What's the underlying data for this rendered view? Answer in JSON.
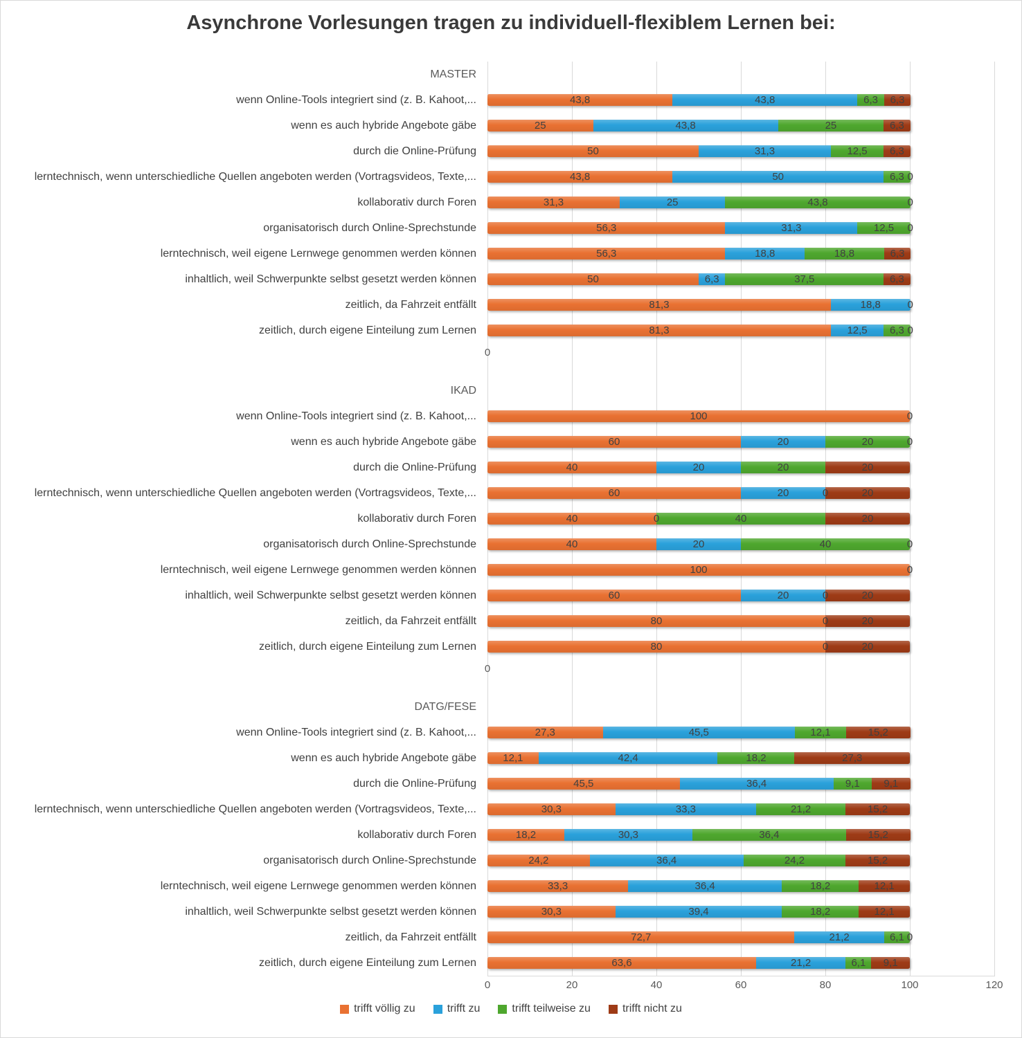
{
  "title": "Asynchrone Vorlesungen tragen zu individuell-flexiblem Lernen bei:",
  "chart_data": {
    "type": "bar",
    "orientation": "horizontal",
    "stacked": true,
    "unit": "percent",
    "title": "Asynchrone Vorlesungen tragen zu individuell-flexiblem Lernen bei:",
    "x_axis": {
      "ticks": [
        "0",
        "20",
        "40",
        "60",
        "80",
        "100",
        "120"
      ],
      "min": 0,
      "max": 120,
      "grid": true
    },
    "series_names": [
      "trifft völlig zu",
      "trifft zu",
      "trifft teilweise zu",
      "trifft nicht zu"
    ],
    "series_colors": [
      "#E97132",
      "#2AA1DB",
      "#4EA72E",
      "#9E3B16"
    ],
    "legend": {
      "position": "bottom",
      "items": [
        {
          "label": "trifft völlig zu",
          "color": "#E97132"
        },
        {
          "label": "trifft zu",
          "color": "#2AA1DB"
        },
        {
          "label": "trifft teilweise zu",
          "color": "#4EA72E"
        },
        {
          "label": "trifft nicht zu",
          "color": "#9E3B16"
        }
      ]
    },
    "categories": [
      "wenn Online-Tools integriert sind (z. B. Kahoot,...",
      "wenn es auch hybride Angebote gäbe",
      "durch die Online-Prüfung",
      "lerntechnisch, wenn unterschiedliche Quellen angeboten werden (Vortragsvideos, Texte,...",
      "kollaborativ durch Foren",
      "organisatorisch durch Online-Sprechstunde",
      "lerntechnisch, weil eigene Lernwege genommen werden können",
      "inhaltlich, weil Schwerpunkte selbst gesetzt werden können",
      "zeitlich, da Fahrzeit entfällt",
      "zeitlich, durch eigene Einteilung zum Lernen"
    ],
    "groups": [
      {
        "name": "MASTER",
        "axis_labels": [
          "0"
        ],
        "rows": [
          {
            "values": [
              43.8,
              43.8,
              6.3,
              6.3
            ],
            "labels": [
              "43,8",
              "43,8",
              "6,3",
              "6,3"
            ]
          },
          {
            "values": [
              25,
              43.8,
              25,
              6.3
            ],
            "labels": [
              "25",
              "43,8",
              "25",
              "6,3"
            ]
          },
          {
            "values": [
              50,
              31.3,
              12.5,
              6.3
            ],
            "labels": [
              "50",
              "31,3",
              "12,5",
              "6,3"
            ]
          },
          {
            "values": [
              43.8,
              50,
              6.3,
              0
            ],
            "labels": [
              "43,8",
              "50",
              "6,3",
              "0"
            ]
          },
          {
            "values": [
              31.3,
              25,
              43.8,
              0
            ],
            "labels": [
              "31,3",
              "25",
              "43,8",
              "0"
            ]
          },
          {
            "values": [
              56.3,
              31.3,
              12.5,
              0
            ],
            "labels": [
              "56,3",
              "31,3",
              "12,5",
              "0"
            ]
          },
          {
            "values": [
              56.3,
              18.8,
              18.8,
              6.3
            ],
            "labels": [
              "56,3",
              "18,8",
              "18,8",
              "6,3"
            ]
          },
          {
            "values": [
              50,
              6.3,
              37.5,
              6.3
            ],
            "labels": [
              "50",
              "6,3",
              "37,5",
              "6,3"
            ]
          },
          {
            "values": [
              81.3,
              18.8,
              0,
              0
            ],
            "labels": [
              "81,3",
              "18,8",
              "0",
              ""
            ]
          },
          {
            "values": [
              81.3,
              12.5,
              6.3,
              0
            ],
            "labels": [
              "81,3",
              "12,5",
              "6,3",
              "0"
            ]
          }
        ]
      },
      {
        "name": "IKAD",
        "axis_labels": [
          "0"
        ],
        "rows": [
          {
            "values": [
              100,
              0,
              0,
              0
            ],
            "labels": [
              "100",
              "0",
              "",
              ""
            ]
          },
          {
            "values": [
              60,
              20,
              20,
              0
            ],
            "labels": [
              "60",
              "20",
              "20",
              "0"
            ]
          },
          {
            "values": [
              40,
              20,
              20,
              20
            ],
            "labels": [
              "40",
              "20",
              "20",
              "20"
            ]
          },
          {
            "values": [
              60,
              20,
              0,
              20
            ],
            "labels": [
              "60",
              "20",
              "0",
              "20"
            ]
          },
          {
            "values": [
              40,
              0,
              40,
              20
            ],
            "labels": [
              "40",
              "0",
              "40",
              "20"
            ]
          },
          {
            "values": [
              40,
              20,
              40,
              0
            ],
            "labels": [
              "40",
              "20",
              "40",
              "0"
            ]
          },
          {
            "values": [
              100,
              0,
              0,
              0
            ],
            "labels": [
              "100",
              "0",
              "",
              ""
            ]
          },
          {
            "values": [
              60,
              20,
              0,
              20
            ],
            "labels": [
              "60",
              "20",
              "0",
              "20"
            ]
          },
          {
            "values": [
              80,
              0,
              0,
              20
            ],
            "labels": [
              "80",
              "0",
              "",
              "20"
            ]
          },
          {
            "values": [
              80,
              0,
              0,
              20
            ],
            "labels": [
              "80",
              "0",
              "",
              "20"
            ]
          }
        ]
      },
      {
        "name": "DATG/FESE",
        "axis_labels": [
          "0",
          "20",
          "40",
          "60",
          "80",
          "100",
          "120"
        ],
        "rows": [
          {
            "values": [
              27.3,
              45.5,
              12.1,
              15.2
            ],
            "labels": [
              "27,3",
              "45,5",
              "12,1",
              "15,2"
            ]
          },
          {
            "values": [
              12.1,
              42.4,
              18.2,
              27.3
            ],
            "labels": [
              "12,1",
              "42,4",
              "18,2",
              "27,3"
            ]
          },
          {
            "values": [
              45.5,
              36.4,
              9.1,
              9.1
            ],
            "labels": [
              "45,5",
              "36,4",
              "9,1",
              "9,1"
            ]
          },
          {
            "values": [
              30.3,
              33.3,
              21.2,
              15.2
            ],
            "labels": [
              "30,3",
              "33,3",
              "21,2",
              "15,2"
            ]
          },
          {
            "values": [
              18.2,
              30.3,
              36.4,
              15.2
            ],
            "labels": [
              "18,2",
              "30,3",
              "36,4",
              "15,2"
            ]
          },
          {
            "values": [
              24.2,
              36.4,
              24.2,
              15.2
            ],
            "labels": [
              "24,2",
              "36,4",
              "24,2",
              "15,2"
            ]
          },
          {
            "values": [
              33.3,
              36.4,
              18.2,
              12.1
            ],
            "labels": [
              "33,3",
              "36,4",
              "18,2",
              "12,1"
            ]
          },
          {
            "values": [
              30.3,
              39.4,
              18.2,
              12.1
            ],
            "labels": [
              "30,3",
              "39,4",
              "18,2",
              "12,1"
            ]
          },
          {
            "values": [
              72.7,
              21.2,
              6.1,
              0
            ],
            "labels": [
              "72,7",
              "21,2",
              "6,1",
              "0"
            ]
          },
          {
            "values": [
              63.6,
              21.2,
              6.1,
              9.1
            ],
            "labels": [
              "63,6",
              "21,2",
              "6,1",
              "9,1"
            ]
          }
        ]
      }
    ]
  }
}
